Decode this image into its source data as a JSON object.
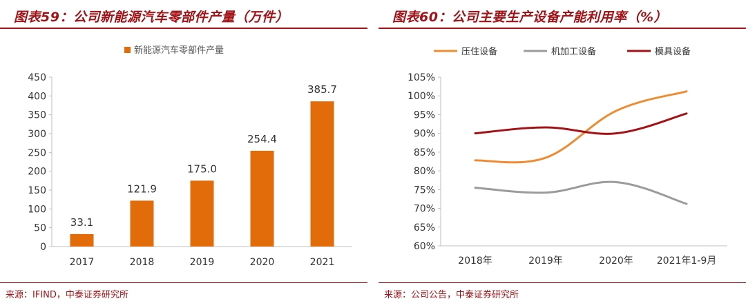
{
  "colors": {
    "accent_red": "#a31216",
    "bar_orange": "#e36c0a",
    "axis_gray": "#bfbfbf",
    "text_dark": "#333333"
  },
  "left": {
    "title": "图表59：公司新能源汽车零部件产量（万件）",
    "source": "来源：IFIND，中泰证券研究所"
  },
  "right": {
    "title": "图表60：公司主要生产设备产能利用率（%）",
    "source": "来源：公司公告，中泰证券研究所"
  },
  "chart_data": [
    {
      "type": "bar",
      "title": "公司新能源汽车零部件产量（万件）",
      "categories": [
        "2017",
        "2018",
        "2019",
        "2020",
        "2021"
      ],
      "series": [
        {
          "name": "新能源汽车零部件产量",
          "values": [
            33.1,
            121.9,
            175.0,
            254.4,
            385.7
          ],
          "color": "#e36c0a"
        }
      ],
      "data_labels": [
        "33.1",
        "121.9",
        "175.0",
        "254.4",
        "385.7"
      ],
      "ylim": [
        0,
        450
      ],
      "yticks": [
        0,
        50,
        100,
        150,
        200,
        250,
        300,
        350,
        400,
        450
      ],
      "legend": "top",
      "grid": false
    },
    {
      "type": "line",
      "title": "公司主要生产设备产能利用率（%）",
      "categories": [
        "2018年",
        "2019年",
        "2020年",
        "2021年1-9月"
      ],
      "series": [
        {
          "name": "压住设备",
          "values": [
            82.8,
            83.5,
            96.0,
            101.2
          ],
          "color": "#ee8c33"
        },
        {
          "name": "机加工设备",
          "values": [
            75.5,
            74.2,
            77.0,
            71.2
          ],
          "color": "#9b9b9b"
        },
        {
          "name": "模具设备",
          "values": [
            90.0,
            91.6,
            90.0,
            95.3
          ],
          "color": "#a31216"
        }
      ],
      "ylim": [
        60,
        105
      ],
      "yticks": [
        "60%",
        "65%",
        "70%",
        "75%",
        "80%",
        "85%",
        "90%",
        "95%",
        "100%",
        "105%"
      ],
      "legend": "top",
      "grid": false
    }
  ]
}
